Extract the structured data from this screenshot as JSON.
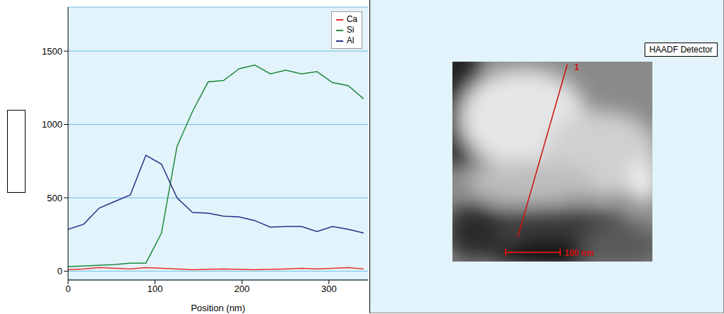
{
  "chart_data": {
    "type": "line",
    "x_label": "Position (nm)",
    "x": [
      0,
      17.9,
      35.8,
      53.7,
      71.6,
      89.5,
      107.4,
      125.3,
      143.2,
      161.1,
      178.9,
      196.8,
      214.7,
      232.6,
      250.5,
      268.4,
      286.3,
      304.2,
      322.1,
      340
    ],
    "series": [
      {
        "name": "Ca",
        "color": "#e8322a",
        "values": [
          10,
          15,
          25,
          20,
          15,
          25,
          20,
          15,
          10,
          12,
          15,
          12,
          10,
          12,
          15,
          20,
          15,
          20,
          25,
          15
        ]
      },
      {
        "name": "Si",
        "color": "#1f8a3b",
        "values": [
          30,
          35,
          40,
          45,
          55,
          55,
          260,
          850,
          1090,
          1290,
          1300,
          1380,
          1405,
          1345,
          1370,
          1345,
          1360,
          1285,
          1265,
          1175
        ]
      },
      {
        "name": "Al",
        "color": "#2b2f86",
        "values": [
          285,
          320,
          430,
          475,
          520,
          790,
          730,
          500,
          400,
          395,
          375,
          370,
          345,
          300,
          305,
          305,
          270,
          305,
          285,
          260
        ]
      }
    ],
    "xlim": [
      0,
      345
    ],
    "xticks": [
      0,
      100,
      200,
      300
    ],
    "ylim": [
      -60,
      1800
    ],
    "yticks": [
      0,
      500,
      1000,
      1500
    ],
    "grid": true,
    "legend": "upper right"
  },
  "image_panel": {
    "detector_label": "HAADF Detector",
    "line_label": "1",
    "scale_bar_label": "100 nm"
  }
}
